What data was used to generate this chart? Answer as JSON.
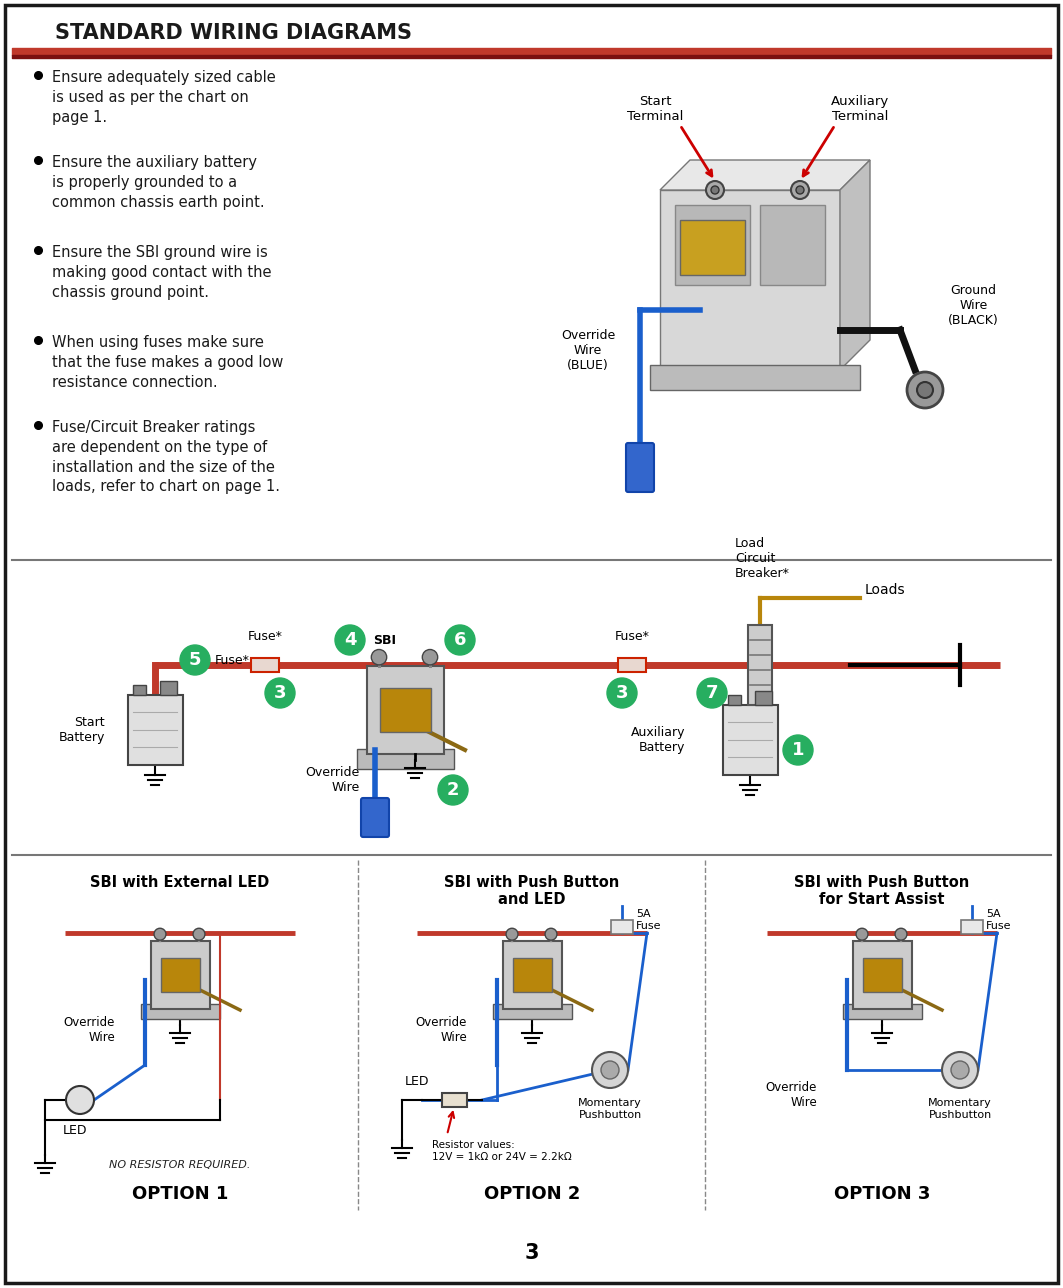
{
  "title": "STANDARD WIRING DIAGRAMS",
  "title_color": "#1a1a1a",
  "title_fontsize": 15,
  "bg_color": "#ffffff",
  "border_color": "#1a1a1a",
  "red_line_color": "#c0392b",
  "red_stripe_color": "#8B1A1A",
  "page_number": "3",
  "bullet_points": [
    "Ensure adequately sized cable\nis used as per the chart on\npage 1.",
    "Ensure the auxiliary battery\nis properly grounded to a\ncommon chassis earth point.",
    "Ensure the SBI ground wire is\nmaking good contact with the\nchassis ground point.",
    "When using fuses make sure\nthat the fuse makes a good low\nresistance connection.",
    "Fuse/Circuit Breaker ratings\nare dependent on the type of\ninstallation and the size of the\nloads, refer to chart on page 1."
  ],
  "circle_color": "#27ae60",
  "circle_text_color": "#ffffff",
  "brown_wire": "#8B6914",
  "blue_wire": "#1a5fcc",
  "black_wire": "#111111",
  "option1_title": "SBI with External LED",
  "option2_title": "SBI with Push Button\nand LED",
  "option3_title": "SBI with Push Button\nfor Start Assist",
  "option1_label": "OPTION 1",
  "option2_label": "OPTION 2",
  "option3_label": "OPTION 3",
  "option1_note": "NO RESISTOR REQUIRED.",
  "option2_resistor": "Resistor values:\n12V = 1kΩ or 24V = 2.2kΩ",
  "fuse_5a": "5A\nFuse",
  "override_wire": "Override\nWire",
  "led_label": "LED",
  "momentary_pb": "Momentary\nPushbutton",
  "start_terminal": "Start\nTerminal",
  "aux_terminal": "Auxiliary\nTerminal",
  "override_blue": "Override\nWire\n(BLUE)",
  "ground_black": "Ground\nWire\n(BLACK)",
  "start_battery": "Start\nBattery",
  "aux_battery": "Auxiliary\nBattery",
  "load_circuit": "Load\nCircuit\nBreaker*",
  "loads_label": "Loads",
  "fuse_star": "Fuse*",
  "sbi_label": "SBI"
}
